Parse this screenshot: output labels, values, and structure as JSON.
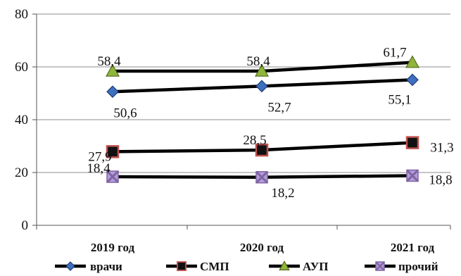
{
  "chart_data": {
    "type": "line",
    "categories": [
      "2019 год",
      "2020 год",
      "2021 год"
    ],
    "ylim": [
      0,
      80
    ],
    "yticks": [
      0,
      20,
      40,
      60,
      80
    ],
    "grid": true,
    "legend": "bottom",
    "series": [
      {
        "name": "врачи",
        "values": [
          50.6,
          52.7,
          55.1
        ],
        "labels": [
          "50,6",
          "52,7",
          "55,1"
        ],
        "marker": "diamond",
        "marker_color": "#3f6fbf"
      },
      {
        "name": "СМП",
        "values": [
          27.9,
          28.5,
          31.3
        ],
        "labels": [
          "27,9",
          "28,5",
          "31,3"
        ],
        "marker": "square",
        "marker_color": "#c0504d"
      },
      {
        "name": "АУП",
        "values": [
          58.4,
          58.4,
          61.7
        ],
        "labels": [
          "58,4",
          "58,4",
          "61,7"
        ],
        "marker": "triangle",
        "marker_color": "#8fb53a"
      },
      {
        "name": "прочий",
        "values": [
          18.4,
          18.2,
          18.8
        ],
        "labels": [
          "18,4",
          "18,2",
          "18,8"
        ],
        "marker": "x-square",
        "marker_color": "#8064a2"
      }
    ],
    "line_color": "#000000"
  }
}
